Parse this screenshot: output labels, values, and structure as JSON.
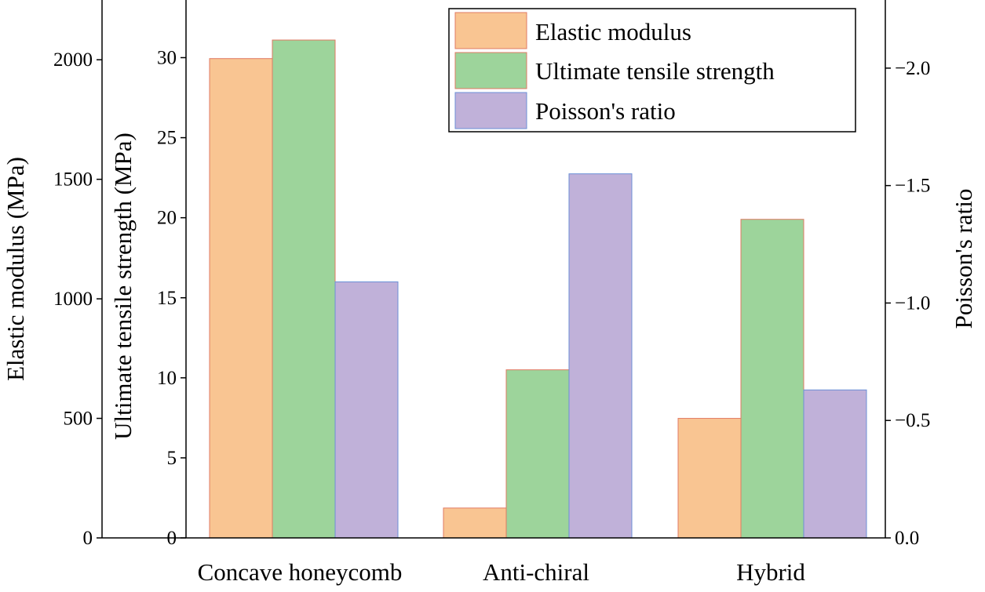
{
  "chart_data": {
    "type": "bar",
    "categories": [
      "Concave honeycomb",
      "Anti-chiral",
      "Hybrid"
    ],
    "series": [
      {
        "name": "Elastic modulus",
        "axis": "left-outer",
        "values": [
          2005,
          125,
          500
        ],
        "color": "#f9c592",
        "edge": "#e07a63"
      },
      {
        "name": "Ultimate tensile strength",
        "axis": "left-inner",
        "values": [
          31.1,
          10.5,
          19.9
        ],
        "color": "#9dd49b",
        "edge": "#e07a63"
      },
      {
        "name": "Poisson's ratio",
        "axis": "right",
        "values": [
          -1.09,
          -1.55,
          -0.63
        ],
        "color": "#c0b1d9",
        "edge": "#6b8fd6"
      }
    ],
    "axes": {
      "left_outer": {
        "label": "Elastic modulus (MPa)",
        "range": [
          0,
          2250
        ],
        "ticks": [
          0,
          500,
          1000,
          1500,
          2000
        ],
        "tick_labels": [
          "0",
          "500",
          "1000",
          "1500",
          "2000"
        ]
      },
      "left_inner": {
        "label": "Ultimate tensile strength (MPa)",
        "range": [
          0,
          33.6
        ],
        "ticks": [
          0,
          5,
          10,
          15,
          20,
          25,
          30
        ],
        "tick_labels": [
          "0",
          "5",
          "10",
          "15",
          "20",
          "25",
          "30"
        ]
      },
      "right": {
        "label": "Poisson's ratio",
        "range": [
          0,
          -2.29
        ],
        "ticks": [
          0,
          -0.5,
          -1.0,
          -1.5,
          -2.0
        ],
        "tick_labels": [
          "0.0",
          "−0.5",
          "−1.0",
          "−1.5",
          "−2.0"
        ]
      }
    },
    "legend": {
      "position": "top-right",
      "entries": [
        "Elastic modulus",
        "Ultimate tensile strength",
        "Poisson's ratio"
      ]
    },
    "grid": false
  }
}
